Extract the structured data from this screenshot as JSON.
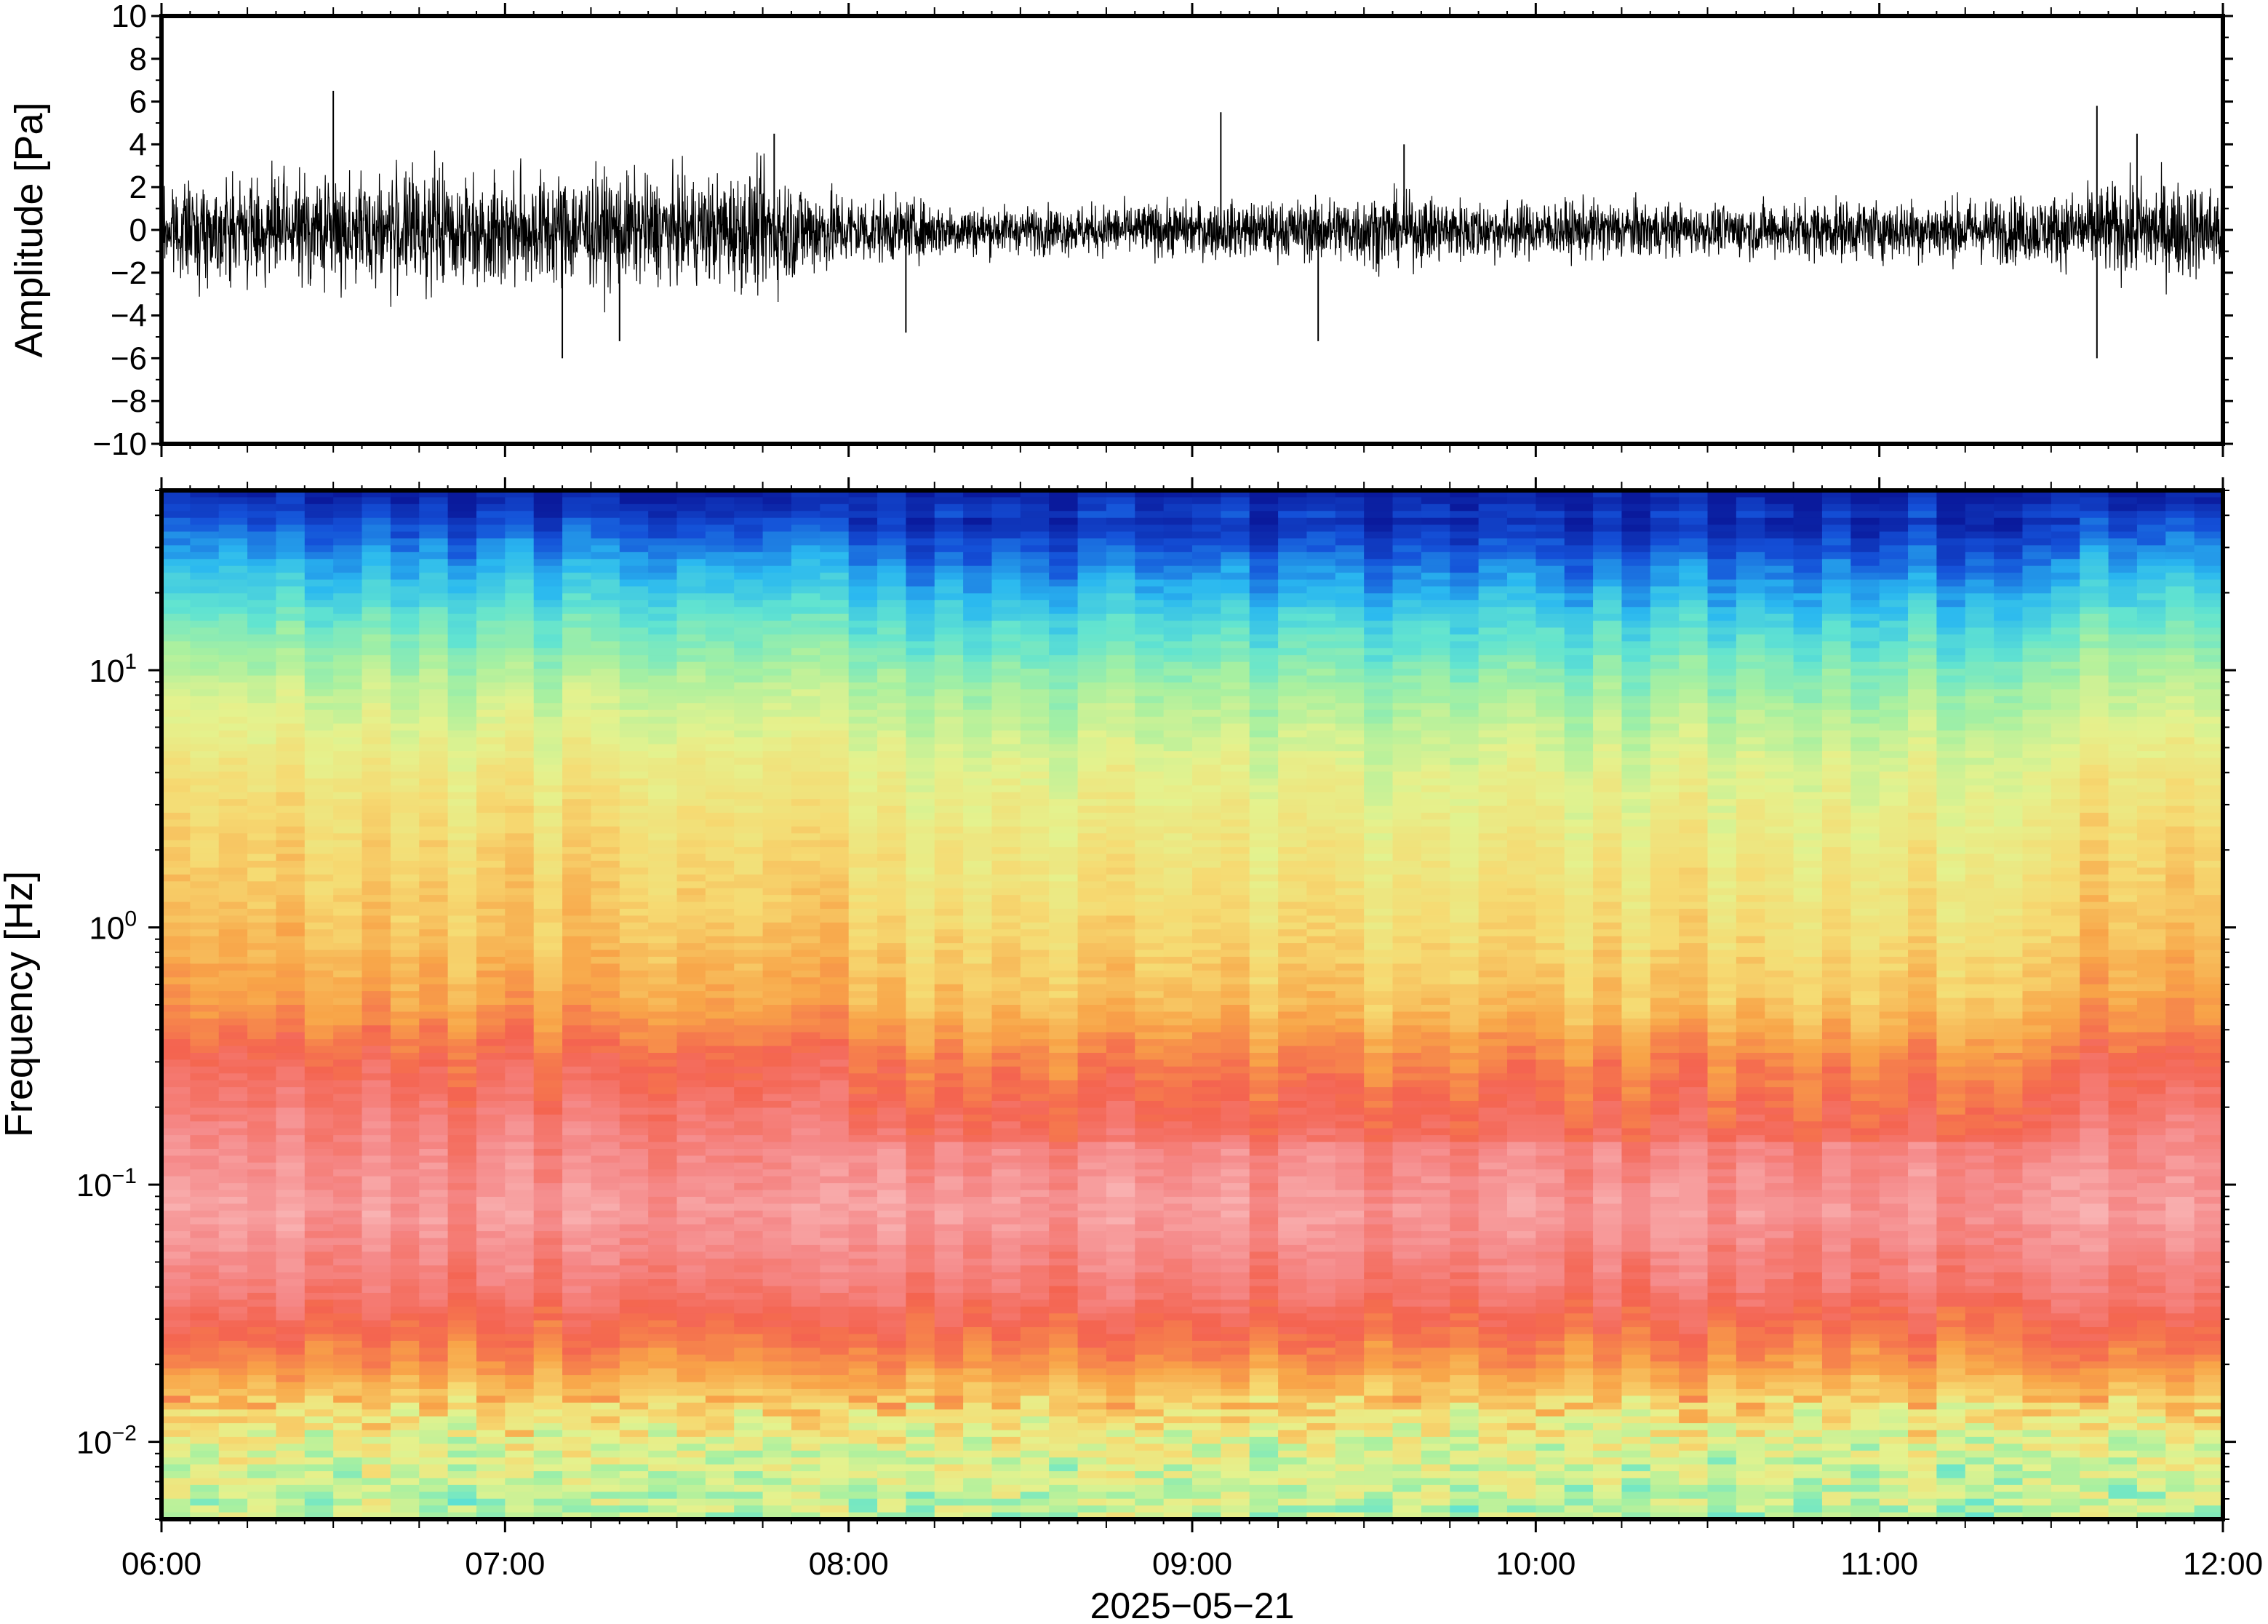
{
  "chart_data": [
    {
      "type": "line",
      "ylabel": "Amplitude [Pa]",
      "ylim": [
        -10,
        10
      ],
      "yticks": [
        10,
        8,
        6,
        4,
        2,
        0,
        -2,
        -4,
        -6,
        -8,
        -10
      ],
      "ytick_labels": [
        "10",
        "8",
        "6",
        "4",
        "2",
        "0",
        "−2",
        "−4",
        "−6",
        "−8",
        "−10"
      ],
      "xlim": [
        "06:00",
        "12:00"
      ],
      "series_color": "#000000",
      "amplitude_envelope": {
        "hours": [
          6.0,
          6.25,
          6.5,
          6.75,
          7.0,
          7.25,
          7.5,
          7.75,
          8.0,
          8.25,
          8.5,
          8.75,
          9.0,
          9.25,
          9.5,
          9.75,
          10.0,
          10.25,
          10.5,
          10.75,
          11.0,
          11.25,
          11.5,
          11.75,
          12.0
        ],
        "typical_abs_pa": [
          1.8,
          2.2,
          2.3,
          2.6,
          2.4,
          2.5,
          2.2,
          2.6,
          1.6,
          1.2,
          1.0,
          1.1,
          1.2,
          1.2,
          1.6,
          1.4,
          1.2,
          1.3,
          1.0,
          1.3,
          1.3,
          1.4,
          1.5,
          2.2,
          2.0
        ]
      },
      "peaks": [
        {
          "time": "06:30",
          "value": 6.5
        },
        {
          "time": "07:10",
          "value": -6.0
        },
        {
          "time": "07:20",
          "value": -5.2
        },
        {
          "time": "07:47",
          "value": 4.5
        },
        {
          "time": "08:10",
          "value": -4.8
        },
        {
          "time": "09:05",
          "value": 5.5
        },
        {
          "time": "09:22",
          "value": -5.2
        },
        {
          "time": "09:37",
          "value": 4.0
        },
        {
          "time": "11:38",
          "value": 5.8
        },
        {
          "time": "11:38",
          "value": -6.0
        },
        {
          "time": "11:45",
          "value": 4.5
        }
      ]
    },
    {
      "type": "heatmap",
      "ylabel": "Frequency [Hz]",
      "yscale": "log",
      "ylim": [
        0.005,
        50
      ],
      "ytick_labels": [
        {
          "value": 0.01,
          "base": "10",
          "exp": "−2"
        },
        {
          "value": 0.1,
          "base": "10",
          "exp": "−1"
        },
        {
          "value": 1,
          "base": "10",
          "exp": "0"
        },
        {
          "value": 10,
          "base": "10",
          "exp": "1"
        }
      ],
      "xlabel": "2025−05−21",
      "xtick_labels": [
        "06:00",
        "07:00",
        "08:00",
        "09:00",
        "10:00",
        "11:00",
        "12:00"
      ],
      "xlim_hours": [
        6,
        12
      ],
      "colormap": [
        "#0a1a9c",
        "#1450d8",
        "#2ab8f0",
        "#62e4d0",
        "#a8f0a0",
        "#e4f28e",
        "#f6da72",
        "#f8a448",
        "#f46450",
        "#f58a8a",
        "#fabcbc"
      ],
      "color_level_by_frequency": {
        "frequency_hz": [
          50,
          30,
          15,
          8,
          4,
          2,
          1,
          0.5,
          0.3,
          0.15,
          0.08,
          0.04,
          0.02,
          0.01,
          0.005
        ],
        "relative_level": [
          0.0,
          0.15,
          0.32,
          0.45,
          0.55,
          0.6,
          0.64,
          0.7,
          0.8,
          0.88,
          0.93,
          0.86,
          0.72,
          0.5,
          0.42
        ]
      }
    }
  ]
}
